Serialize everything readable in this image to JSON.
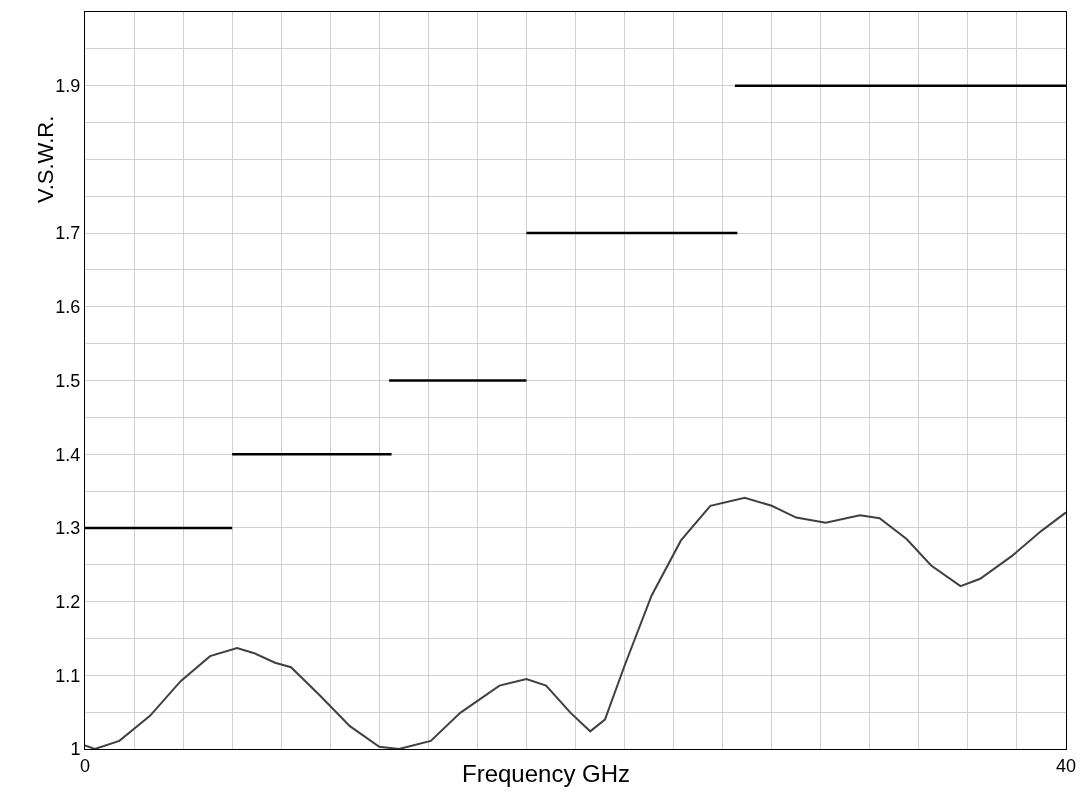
{
  "chart_data": {
    "type": "line",
    "xlabel": "Frequency GHz",
    "ylabel": "V.S.W.R.",
    "xlim": [
      0,
      40
    ],
    "ylim": [
      1,
      2.0
    ],
    "xticks": [
      0,
      {
        "value": 2,
        "label": null
      },
      {
        "value": 4,
        "label": null
      },
      {
        "value": 6,
        "label": null
      },
      {
        "value": 8,
        "label": null
      },
      {
        "value": 10,
        "label": null
      },
      {
        "value": 12,
        "label": null
      },
      {
        "value": 14,
        "label": null
      },
      {
        "value": 16,
        "label": null
      },
      {
        "value": 18,
        "label": null
      },
      {
        "value": 20,
        "label": null
      },
      {
        "value": 22,
        "label": null
      },
      {
        "value": 24,
        "label": null
      },
      {
        "value": 26,
        "label": null
      },
      {
        "value": 28,
        "label": null
      },
      {
        "value": 30,
        "label": null
      },
      {
        "value": 32,
        "label": null
      },
      {
        "value": 34,
        "label": null
      },
      {
        "value": 36,
        "label": null
      },
      {
        "value": 38,
        "label": null
      },
      40
    ],
    "yticks": [
      1,
      {
        "value": 1.05,
        "label": null
      },
      1.1,
      {
        "value": 1.15,
        "label": null
      },
      1.2,
      {
        "value": 1.25,
        "label": null
      },
      1.3,
      {
        "value": 1.35,
        "label": null
      },
      1.4,
      {
        "value": 1.45,
        "label": null
      },
      1.5,
      {
        "value": 1.55,
        "label": null
      },
      1.6,
      {
        "value": 1.65,
        "label": null
      },
      1.7,
      {
        "value": 1.75,
        "label": null
      },
      {
        "value": 1.8,
        "label": null
      },
      {
        "value": 1.85,
        "label": null
      },
      1.9,
      {
        "value": 1.95,
        "label": null
      },
      {
        "value": 2.0,
        "label": null
      }
    ],
    "grid": true,
    "marker": "none",
    "line_style": "solid",
    "series": [
      {
        "color": "#404040",
        "x": [
          0,
          0.4,
          1.4,
          2.65,
          3.9,
          5.1,
          6.2,
          6.9,
          7.75,
          8.4,
          9.6,
          10.8,
          12.0,
          12.8,
          14.1,
          15.3,
          16.9,
          18.0,
          18.8,
          19.8,
          20.6,
          21.2,
          22.0,
          23.1,
          24.3,
          25.5,
          26.9,
          28.0,
          29.0,
          30.2,
          31.6,
          32.4,
          33.5,
          34.5,
          35.7,
          36.5,
          37.8,
          39.0,
          40
        ],
        "values": [
          1.005,
          1.0,
          1.011,
          1.045,
          1.092,
          1.126,
          1.137,
          1.13,
          1.117,
          1.111,
          1.072,
          1.031,
          1.003,
          1.0,
          1.011,
          1.049,
          1.086,
          1.095,
          1.086,
          1.049,
          1.024,
          1.04,
          1.113,
          1.208,
          1.283,
          1.33,
          1.341,
          1.33,
          1.314,
          1.307,
          1.317,
          1.313,
          1.285,
          1.249,
          1.221,
          1.231,
          1.262,
          1.296,
          1.321
        ]
      },
      {
        "color": "#000000",
        "x": [
          0,
          6
        ],
        "values": [
          1.3,
          1.3
        ]
      },
      {
        "color": "#000000",
        "x": [
          6,
          12.5
        ],
        "values": [
          1.4,
          1.4
        ]
      },
      {
        "color": "#000000",
        "x": [
          12.4,
          18
        ],
        "values": [
          1.5,
          1.5
        ]
      },
      {
        "color": "#000000",
        "x": [
          18,
          26.6
        ],
        "values": [
          1.7,
          1.7
        ]
      },
      {
        "color": "#000000",
        "x": [
          26.5,
          40
        ],
        "values": [
          1.9,
          1.9
        ]
      }
    ]
  }
}
